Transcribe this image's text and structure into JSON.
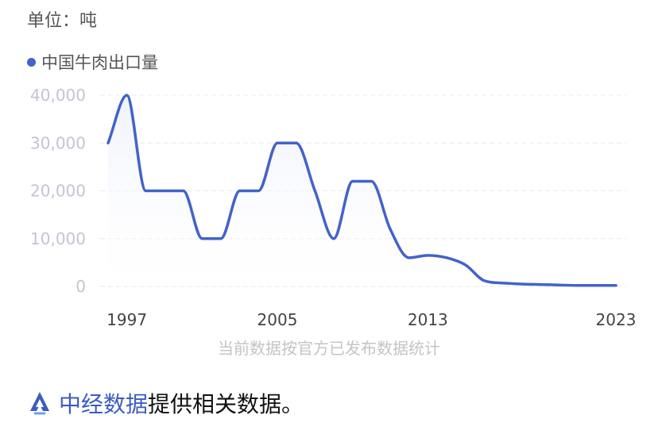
{
  "unit_label": "单位：吨",
  "note": "当前数据按官方已发布数据统计",
  "footer": {
    "logo_icon": "zhongjing-logo-icon",
    "brand": "中经数据",
    "text": "提供相关数据。"
  },
  "colors": {
    "line": "#4263c9",
    "grid": "#e6e9f2",
    "tick": "#c2c6d0",
    "xtick": "#444444",
    "brand": "#3b5bbf"
  },
  "chart_data": {
    "type": "line",
    "title": "",
    "xlabel": "",
    "ylabel": "",
    "legend_position": "top-left",
    "grid": true,
    "ylim": [
      0,
      40000
    ],
    "xlim": [
      1996,
      2023
    ],
    "y_ticks": [
      "0",
      "10,000",
      "20,000",
      "30,000",
      "40,000"
    ],
    "x_ticks": [
      "1997",
      "2005",
      "2013",
      "2023"
    ],
    "series": [
      {
        "name": "中国牛肉出口量",
        "x": [
          1996,
          1997,
          1998,
          1999,
          2000,
          2001,
          2002,
          2003,
          2004,
          2005,
          2006,
          2007,
          2008,
          2009,
          2010,
          2011,
          2012,
          2013,
          2014,
          2015,
          2016,
          2017,
          2018,
          2019,
          2020,
          2021,
          2022,
          2023
        ],
        "values": [
          30000,
          40000,
          20000,
          20000,
          20000,
          10000,
          10000,
          20000,
          20000,
          30000,
          30000,
          20000,
          10000,
          22000,
          22000,
          12000,
          6000,
          6500,
          6000,
          4500,
          1200,
          700,
          500,
          400,
          300,
          200,
          200,
          200
        ]
      }
    ]
  }
}
